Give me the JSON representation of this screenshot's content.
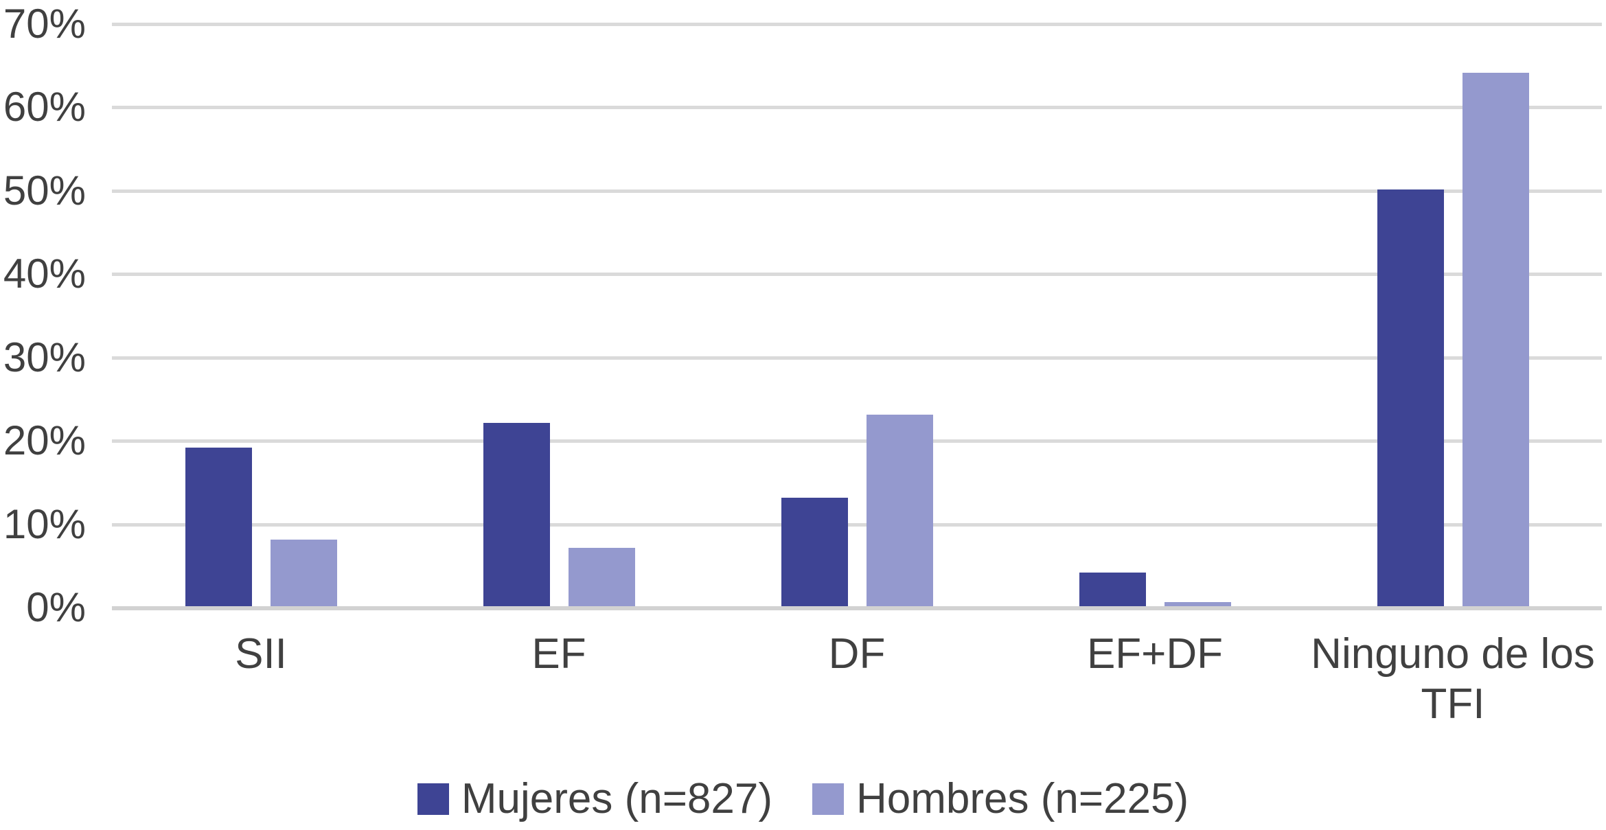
{
  "chart_data": {
    "type": "bar",
    "title": "",
    "xlabel": "",
    "ylabel": "",
    "categories": [
      "SII",
      "EF",
      "DF",
      "EF+DF",
      "Ninguno de los TFI"
    ],
    "series": [
      {
        "name": "Mujeres (n=827)",
        "color": "#3E4494",
        "values": [
          19,
          22,
          13,
          4,
          50
        ]
      },
      {
        "name": "Hombres (n=225)",
        "color": "#9499CE",
        "values": [
          8,
          7,
          23,
          0.5,
          64
        ]
      }
    ],
    "ylim": [
      0,
      70
    ],
    "ytick_step": 10,
    "ytick_labels": [
      "0%",
      "10%",
      "20%",
      "30%",
      "40%",
      "50%",
      "60%",
      "70%"
    ],
    "grid": true,
    "legend_position": "bottom"
  },
  "colors": {
    "gridline": "#DADADA",
    "axis_line": "#D2D2D2",
    "text": "#404040",
    "background": "#FFFFFF"
  }
}
